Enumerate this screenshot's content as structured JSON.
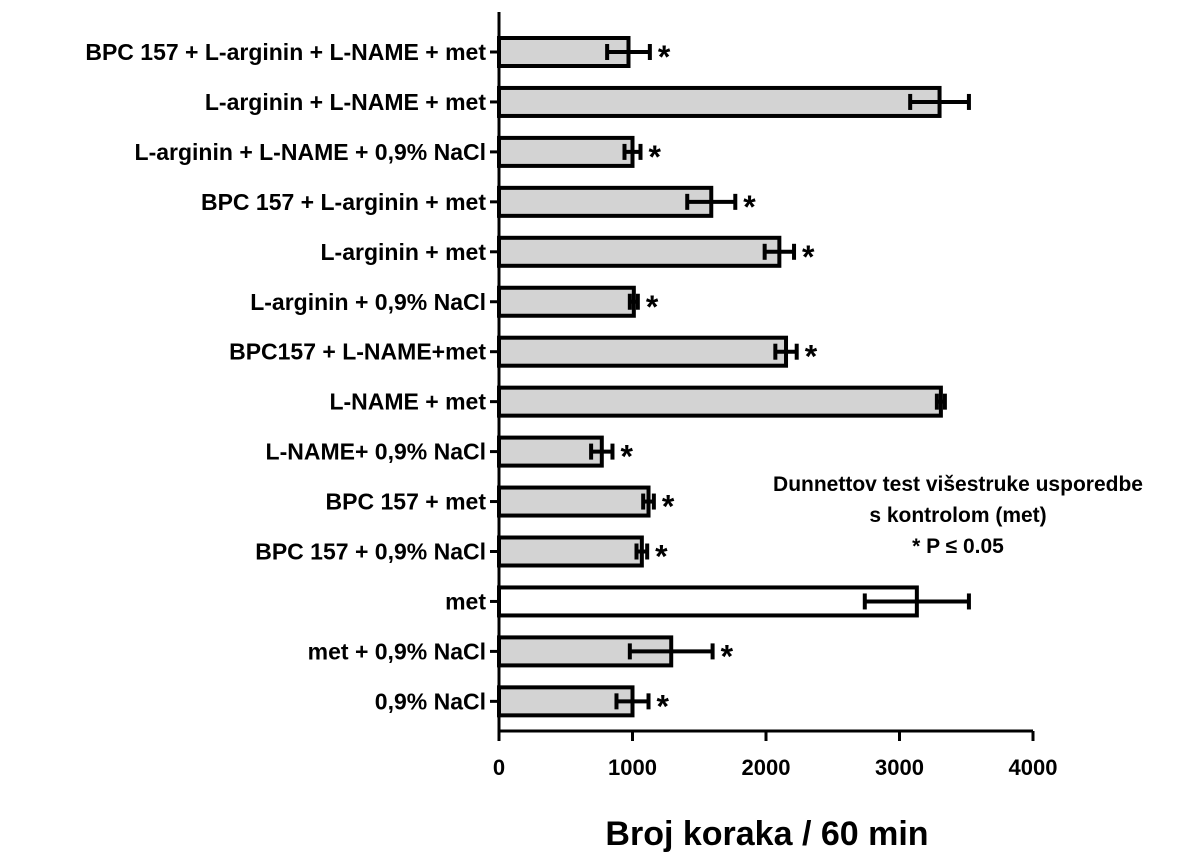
{
  "chart_data": {
    "type": "bar",
    "orientation": "horizontal",
    "xlabel": "Broj koraka / 60 min",
    "ylabel": "",
    "xlim": [
      0,
      4000
    ],
    "xticks": [
      "0",
      "1000",
      "2000",
      "3000",
      "4000"
    ],
    "grid": false,
    "categories": [
      "BPC 157 + L-arginin + L-NAME + met",
      "L-arginin + L-NAME + met",
      "L-arginin + L-NAME + 0,9% NaCl",
      "BPC 157 + L-arginin + met",
      "L-arginin + met",
      "L-arginin + 0,9% NaCl",
      "BPC157 + L-NAME+met",
      "L-NAME + met",
      "L-NAME+ 0,9% NaCl",
      "BPC 157 + met",
      "BPC 157 + 0,9% NaCl",
      "met",
      "met + 0,9% NaCl",
      "0,9% NaCl"
    ],
    "values": [
      970,
      3300,
      1000,
      1590,
      2100,
      1010,
      2150,
      3310,
      770,
      1120,
      1070,
      3130,
      1290,
      1000
    ],
    "errors": [
      160,
      220,
      60,
      180,
      110,
      30,
      80,
      30,
      80,
      40,
      40,
      390,
      310,
      120
    ],
    "significant": [
      true,
      false,
      true,
      true,
      true,
      true,
      true,
      false,
      true,
      true,
      true,
      false,
      true,
      true
    ],
    "bar_fills": [
      "#d3d3d3",
      "#d3d3d3",
      "#d3d3d3",
      "#d3d3d3",
      "#d3d3d3",
      "#d3d3d3",
      "#d3d3d3",
      "#d3d3d3",
      "#d3d3d3",
      "#d3d3d3",
      "#d3d3d3",
      "#ffffff",
      "#d3d3d3",
      "#d3d3d3"
    ],
    "significance_marker": "*",
    "annotation": [
      "Dunnettov test višestruke usporedbe",
      "s kontrolom (met)",
      "* P ≤ 0.05"
    ]
  }
}
